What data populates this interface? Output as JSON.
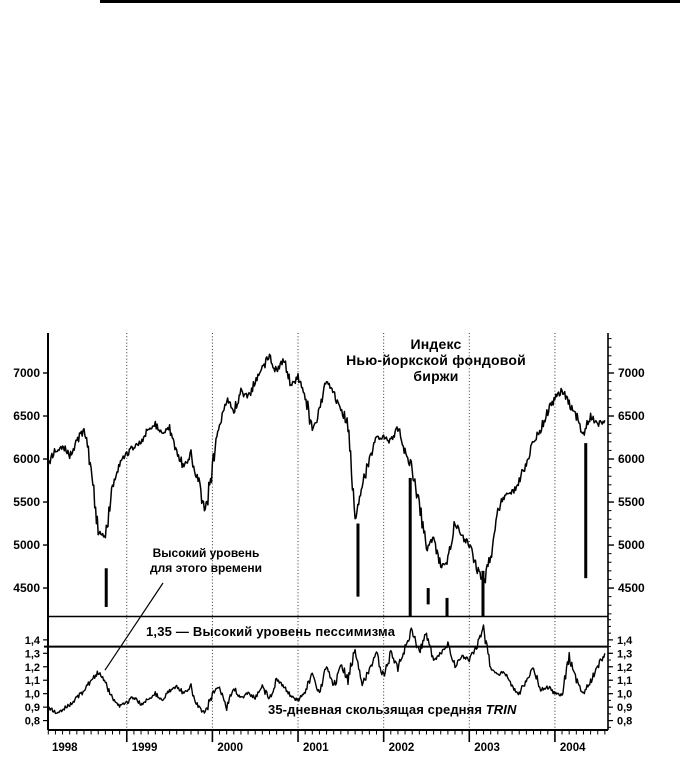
{
  "chart_data": {
    "type": "line",
    "title": "Индекс\nНью-йоркской фондовой\nбиржи",
    "grid": "vertical-dotted-at-year-starts",
    "legend": "none",
    "x_domain": [
      1998.08,
      2004.62
    ],
    "x_tick_years": [
      "1998",
      "1999",
      "2000",
      "2001",
      "2002",
      "2003",
      "2004"
    ],
    "panels": [
      {
        "id": "nyse",
        "name": "Индекс Нью-йоркской фондовой биржи",
        "ylim": [
          4175,
          7465
        ],
        "yticks": [
          "7000",
          "6500",
          "6000",
          "5500",
          "5000",
          "4500"
        ],
        "ytick_values": [
          7000,
          6500,
          6000,
          5500,
          5000,
          4500
        ],
        "series": [
          {
            "name": "Индекс Нью-йоркской фондовой биржи",
            "x_start": 1998.0,
            "x_step_years": 0.08333,
            "values": [
              5670,
              5950,
              6100,
              6150,
              6050,
              6200,
              6350,
              5900,
              5150,
              5080,
              5700,
              5950,
              6050,
              6150,
              6200,
              6350,
              6400,
              6300,
              6350,
              6100,
              5900,
              6050,
              5750,
              5350,
              5900,
              6400,
              6700,
              6550,
              6800,
              6700,
              6900,
              7050,
              7200,
              7000,
              7150,
              6850,
              6950,
              6750,
              6300,
              6600,
              6900,
              6750,
              6600,
              6400,
              5350,
              5700,
              6000,
              6250,
              6250,
              6200,
              6350,
              6100,
              5900,
              5450,
              4950,
              5100,
              4750,
              4800,
              5250,
              5100,
              5000,
              4750,
              4550,
              4900,
              5400,
              5600,
              5600,
              5750,
              5950,
              6200,
              6350,
              6550,
              6700,
              6800,
              6650,
              6500,
              6280,
              6500,
              6400,
              6450
            ]
          }
        ],
        "signal_bars": [
          {
            "year": 1998.76,
            "from": 4280,
            "to": 4730
          },
          {
            "year": 2001.7,
            "from": 4400,
            "to": 5250
          },
          {
            "year": 2002.31,
            "from": 4175,
            "to": 5780
          },
          {
            "year": 2002.52,
            "from": 4310,
            "to": 4500
          },
          {
            "year": 2002.74,
            "from": 4175,
            "to": 4385
          },
          {
            "year": 2003.16,
            "from": 4175,
            "to": 4700
          },
          {
            "year": 2004.36,
            "from": 4615,
            "to": 6185
          }
        ]
      },
      {
        "id": "trin",
        "name": "35-дневная скользящая средняя TRIN",
        "ylim": [
          0.73,
          1.57
        ],
        "yticks": [
          "1,4",
          "1,3",
          "1,2",
          "1,1",
          "1,0",
          "0,9",
          "0,8"
        ],
        "ytick_values": [
          1.4,
          1.3,
          1.2,
          1.1,
          1.0,
          0.9,
          0.8
        ],
        "threshold": {
          "value": 1.35,
          "label": "1,35 — Высокий уровень пессимизма"
        },
        "series": [
          {
            "name": "35-дневная скользящая средняя TRIN",
            "x_start": 1998.0,
            "x_step_years": 0.08333,
            "values": [
              0.95,
              0.9,
              0.86,
              0.88,
              0.92,
              0.97,
              1.02,
              1.1,
              1.16,
              1.08,
              0.97,
              0.91,
              0.93,
              0.98,
              0.92,
              0.96,
              1.0,
              0.95,
              1.02,
              1.06,
              1.0,
              1.05,
              0.9,
              0.85,
              1.0,
              1.05,
              0.9,
              1.04,
              0.97,
              1.0,
              0.97,
              1.05,
              0.96,
              1.1,
              1.05,
              0.98,
              0.95,
              1.02,
              1.14,
              1.01,
              1.2,
              1.04,
              1.23,
              1.1,
              1.35,
              1.07,
              1.18,
              1.3,
              1.12,
              1.3,
              1.18,
              1.35,
              1.48,
              1.3,
              1.45,
              1.25,
              1.3,
              1.36,
              1.2,
              1.28,
              1.25,
              1.35,
              1.48,
              1.2,
              1.14,
              1.17,
              1.05,
              1.0,
              1.1,
              1.19,
              1.03,
              1.05,
              1.0,
              0.99,
              1.28,
              1.1,
              1.0,
              1.09,
              1.2,
              1.3
            ]
          }
        ]
      }
    ],
    "annotations": [
      {
        "text": "Высокий уровень\nдля этого времени",
        "arrow_to": {
          "year": 1998.745,
          "value": 1.16
        }
      }
    ],
    "labels": {
      "trin_plain": "35-дневная скользящая средняя ",
      "trin_italic": "TRIN"
    }
  }
}
